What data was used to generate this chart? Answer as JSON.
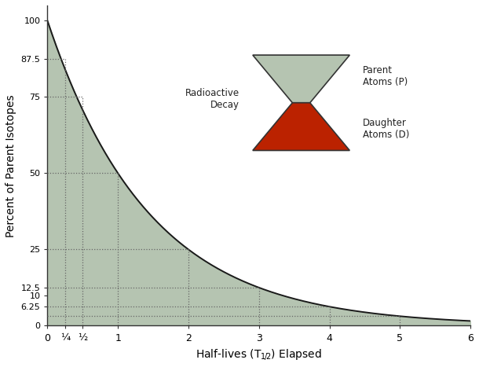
{
  "title": "",
  "xlabel": "Half-lives (T½) Elapsed",
  "ylabel": "Percent of Parent Isotopes",
  "xlim": [
    0,
    6
  ],
  "ylim": [
    0,
    105
  ],
  "x_ticks": [
    0,
    0.25,
    0.5,
    1,
    2,
    3,
    4,
    5,
    6
  ],
  "x_tick_labels": [
    "0",
    "¼",
    "½",
    "1",
    "2",
    "3",
    "4",
    "5",
    "6"
  ],
  "y_ticks": [
    0,
    6.25,
    10,
    12.5,
    25,
    50,
    75,
    87.5,
    100
  ],
  "y_tick_labels": [
    "0",
    "6.25",
    "10",
    "12.5",
    "25",
    "50",
    "75",
    "87.5",
    "100"
  ],
  "curve_color": "#1a1a1a",
  "fill_color": "#b5c4b1",
  "fill_alpha": 1.0,
  "grid_color": "#666666",
  "background_color": "#ffffff",
  "hourglass_top_color": "#b5c4b1",
  "hourglass_outline_color": "#333333",
  "hourglass_bottom_color": "#bb2200",
  "label_radioactive_decay": "Radioactive\nDecay",
  "label_parent": "Parent\nAtoms (P)",
  "label_daughter": "Daughter\nAtoms (D)",
  "dashed_lines_x": [
    0.25,
    0.5,
    1,
    2,
    3,
    4,
    5
  ],
  "dashed_lines_y": [
    87.5,
    75.0,
    50.0,
    25.0,
    12.5,
    6.25,
    3.125
  ]
}
